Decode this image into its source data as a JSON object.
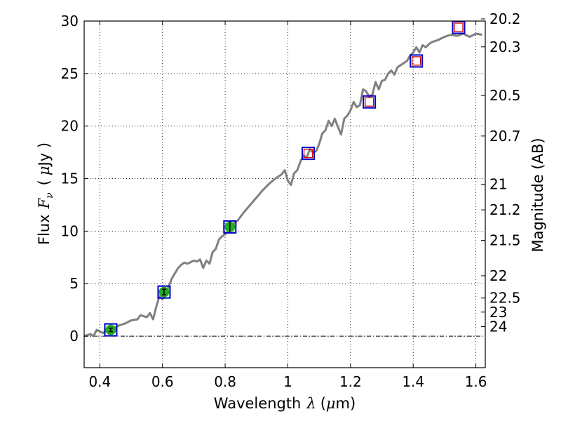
{
  "chart_data": {
    "type": "line",
    "title": "",
    "xlabel": "Wavelength",
    "xlabel_symbol": "λ",
    "xlabel_unit_open": "(",
    "xlabel_unit_mu": "μ",
    "xlabel_unit_rest": "m)",
    "ylabel": "Flux",
    "ylabel_symbol": "F",
    "ylabel_subscript": "ν",
    "ylabel_unit_open": "(",
    "ylabel_unit_mu": "μ",
    "ylabel_unit_rest": "Jy )",
    "y2label": "Magnitude (AB)",
    "xlim": [
      0.35,
      1.63
    ],
    "ylim": [
      -3,
      30
    ],
    "grid": true,
    "xticks": [
      0.4,
      0.6,
      0.8,
      1.0,
      1.2,
      1.4,
      1.6
    ],
    "xtick_labels": [
      "0.4",
      "0.6",
      "0.8",
      "1",
      "1.2",
      "1.4",
      "1.6"
    ],
    "yticks": [
      0,
      5,
      10,
      15,
      20,
      25,
      30
    ],
    "ytick_labels": [
      "0",
      "5",
      "10",
      "15",
      "20",
      "25",
      "30"
    ],
    "mag_ticks": [
      "20.2",
      "20.3",
      "20.5",
      "20.7",
      "21",
      "21.2",
      "21.5",
      "22",
      "22.5",
      "23",
      "24"
    ],
    "reference_line_y": 0,
    "spectrum": {
      "name": "model spectrum",
      "color": "#808080",
      "x": [
        0.35,
        0.37,
        0.38,
        0.39,
        0.41,
        0.42,
        0.44,
        0.46,
        0.47,
        0.48,
        0.5,
        0.52,
        0.53,
        0.55,
        0.56,
        0.57,
        0.58,
        0.59,
        0.6,
        0.61,
        0.63,
        0.64,
        0.65,
        0.66,
        0.67,
        0.68,
        0.7,
        0.71,
        0.72,
        0.73,
        0.74,
        0.75,
        0.76,
        0.77,
        0.78,
        0.79,
        0.8,
        0.81,
        0.82,
        0.83,
        0.84,
        0.85,
        0.86,
        0.88,
        0.9,
        0.92,
        0.94,
        0.96,
        0.98,
        0.99,
        1.0,
        1.01,
        1.02,
        1.03,
        1.04,
        1.05,
        1.06,
        1.07,
        1.08,
        1.09,
        1.1,
        1.11,
        1.12,
        1.13,
        1.14,
        1.15,
        1.16,
        1.17,
        1.18,
        1.19,
        1.2,
        1.21,
        1.22,
        1.23,
        1.24,
        1.25,
        1.26,
        1.27,
        1.28,
        1.29,
        1.3,
        1.31,
        1.32,
        1.33,
        1.34,
        1.35,
        1.36,
        1.37,
        1.38,
        1.39,
        1.4,
        1.41,
        1.42,
        1.43,
        1.44,
        1.45,
        1.46,
        1.48,
        1.5,
        1.52,
        1.54,
        1.56,
        1.58,
        1.6,
        1.62
      ],
      "y": [
        0,
        0.2,
        0,
        0.6,
        0.3,
        0.5,
        0.7,
        1.0,
        1.1,
        1.2,
        1.5,
        1.6,
        2.0,
        1.8,
        2.2,
        1.6,
        2.8,
        3.8,
        3.5,
        4.0,
        5.5,
        6.0,
        6.5,
        6.8,
        7.0,
        6.9,
        7.2,
        7.1,
        7.3,
        6.5,
        7.2,
        6.9,
        8.0,
        8.3,
        9.2,
        9.5,
        9.7,
        10.0,
        10.3,
        10.8,
        11.0,
        11.4,
        11.8,
        12.5,
        13.2,
        13.9,
        14.5,
        15.0,
        15.4,
        15.8,
        14.8,
        14.4,
        15.5,
        15.8,
        16.6,
        17.2,
        17.0,
        17.8,
        17.5,
        17.6,
        18.3,
        19.3,
        19.6,
        20.5,
        20.0,
        20.7,
        19.9,
        19.2,
        20.7,
        21.0,
        21.5,
        22.3,
        21.8,
        22.0,
        23.5,
        23.3,
        22.8,
        23.0,
        24.2,
        23.5,
        24.3,
        24.4,
        25.0,
        25.3,
        24.9,
        25.6,
        25.8,
        26.0,
        26.2,
        26.7,
        27.0,
        27.5,
        27.0,
        27.7,
        27.5,
        27.8,
        28.0,
        28.2,
        28.5,
        28.7,
        28.6,
        28.8,
        28.5,
        28.8,
        28.7
      ]
    },
    "photometry_blue_squares": {
      "name": "photometry (blue squares)",
      "color": "#0000cc",
      "x": [
        0.435,
        0.605,
        0.815,
        1.065,
        1.26,
        1.41,
        1.545
      ],
      "y": [
        0.6,
        4.2,
        10.4,
        17.4,
        22.3,
        26.2,
        29.4
      ]
    },
    "photometry_red_squares": {
      "name": "model photometry (red squares)",
      "color": "#cc0000",
      "x": [
        1.065,
        1.26,
        1.41,
        1.545
      ],
      "y": [
        17.4,
        22.3,
        26.2,
        29.4
      ]
    },
    "photometry_green_points": {
      "name": "measured fluxes (green)",
      "color": "#22aa22",
      "x": [
        0.435,
        0.605,
        0.815
      ],
      "y": [
        0.6,
        4.2,
        10.4
      ],
      "yerr": [
        0.1,
        0.2,
        0.5
      ]
    }
  }
}
